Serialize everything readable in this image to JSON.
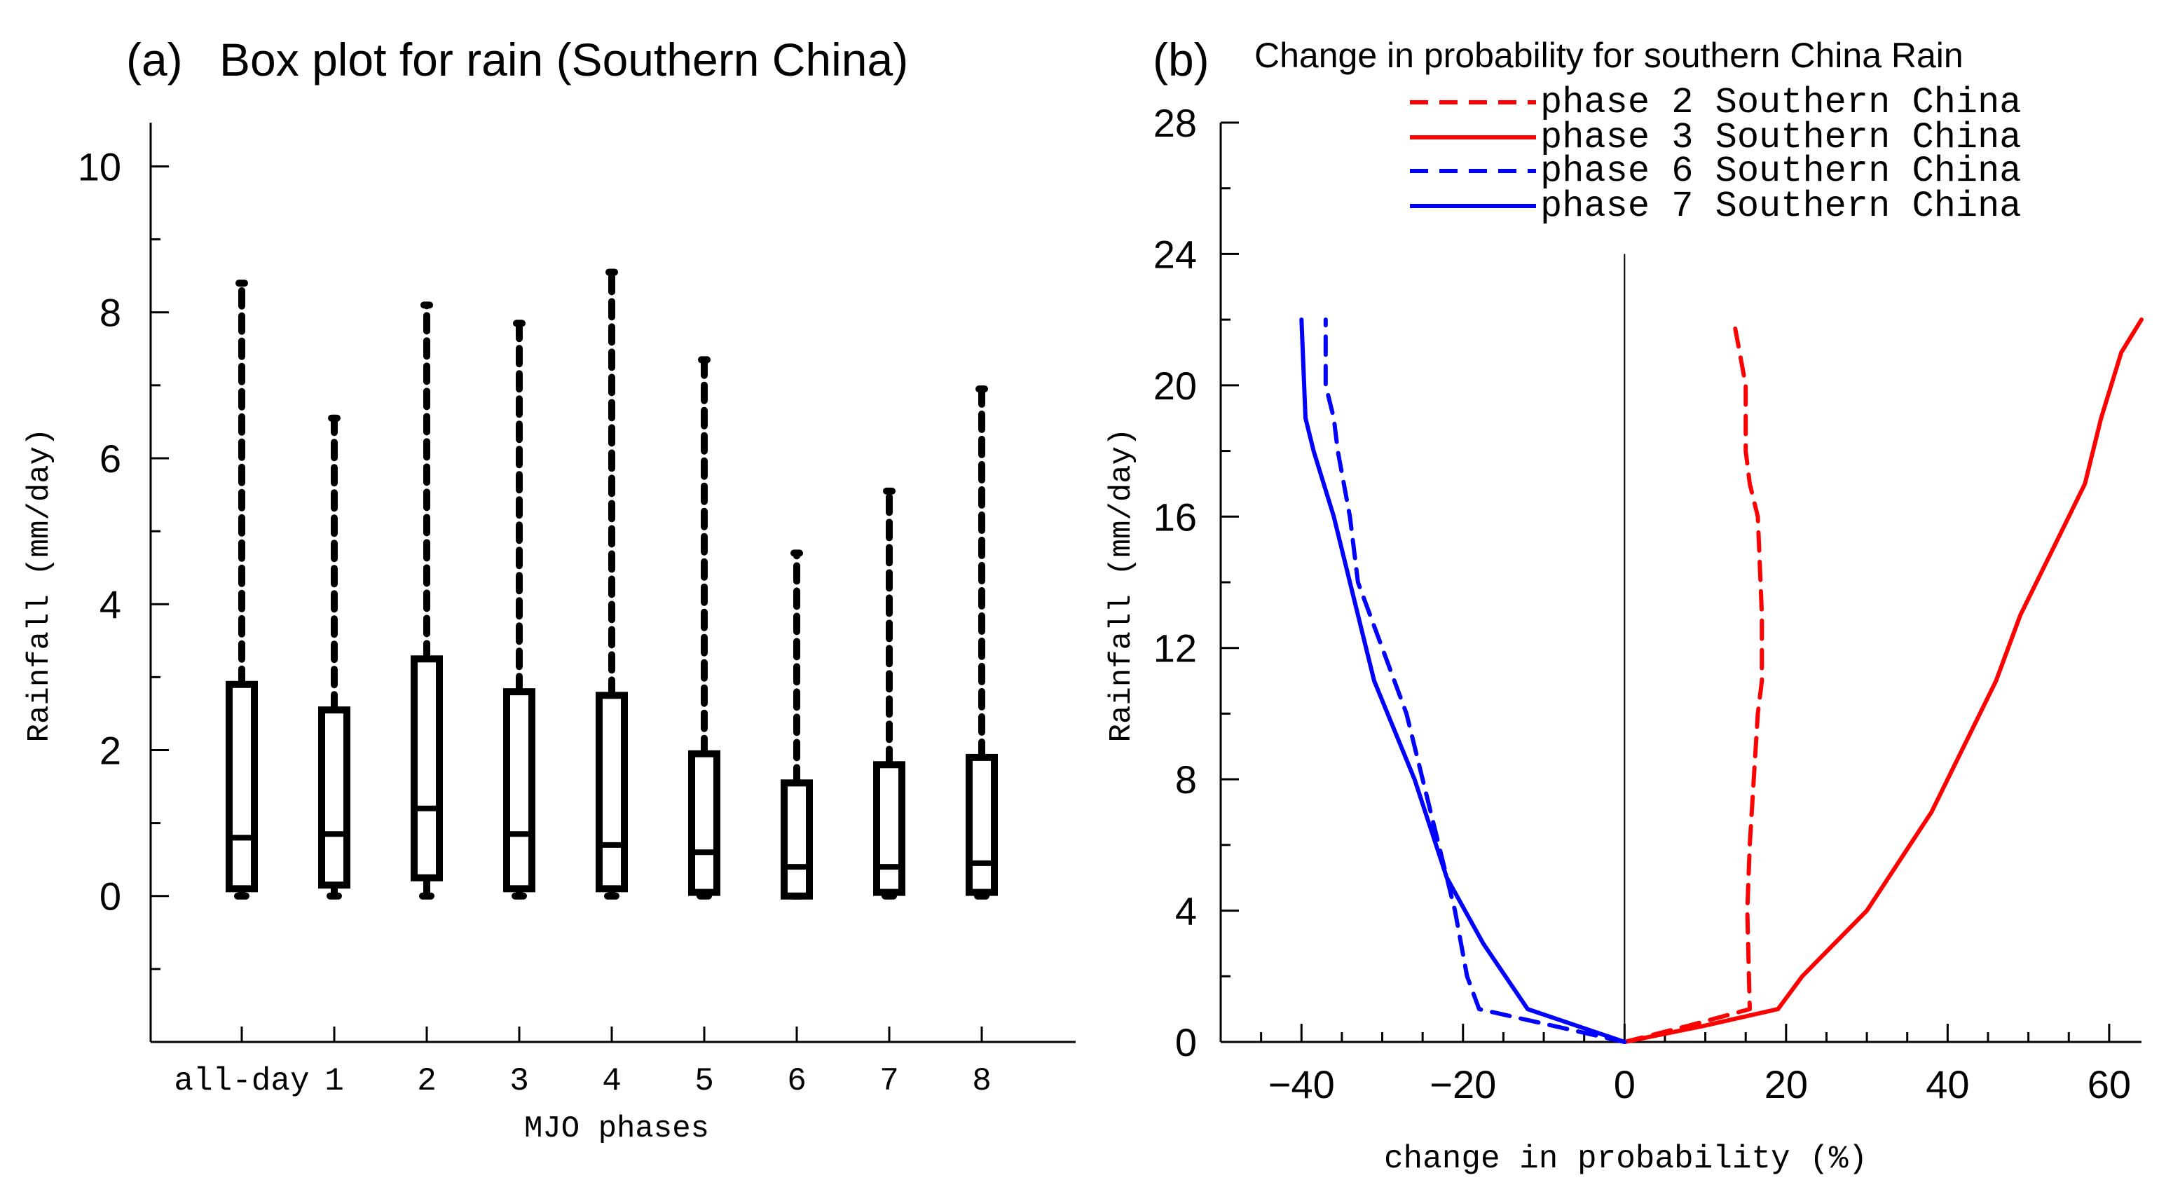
{
  "chart_data": [
    {
      "type": "box",
      "panel_label": "(a)",
      "title": "Box plot for rain (Southern China)",
      "xlabel": "MJO phases",
      "ylabel": "Rainfall (mm/day)",
      "ylim": [
        -2,
        10.6
      ],
      "yticks": [
        0,
        2,
        4,
        6,
        8,
        10
      ],
      "ytick_labels": [
        "0",
        "2",
        "4",
        "6",
        "8",
        "10"
      ],
      "categories": [
        "all-day",
        "1",
        "2",
        "3",
        "4",
        "5",
        "6",
        "7",
        "8"
      ],
      "boxes": [
        {
          "category": "all-day",
          "min": 0.0,
          "q1": 0.1,
          "median": 0.8,
          "q3": 2.9,
          "max": 8.4
        },
        {
          "category": "1",
          "min": 0.0,
          "q1": 0.15,
          "median": 0.85,
          "q3": 2.55,
          "max": 6.55
        },
        {
          "category": "2",
          "min": 0.0,
          "q1": 0.25,
          "median": 1.2,
          "q3": 3.25,
          "max": 8.1
        },
        {
          "category": "3",
          "min": 0.0,
          "q1": 0.1,
          "median": 0.85,
          "q3": 2.8,
          "max": 7.85
        },
        {
          "category": "4",
          "min": 0.0,
          "q1": 0.1,
          "median": 0.7,
          "q3": 2.75,
          "max": 8.55
        },
        {
          "category": "5",
          "min": 0.0,
          "q1": 0.05,
          "median": 0.6,
          "q3": 1.95,
          "max": 7.35
        },
        {
          "category": "6",
          "min": 0.0,
          "q1": 0.0,
          "median": 0.4,
          "q3": 1.55,
          "max": 4.7
        },
        {
          "category": "7",
          "min": 0.0,
          "q1": 0.05,
          "median": 0.4,
          "q3": 1.8,
          "max": 5.55
        },
        {
          "category": "8",
          "min": 0.0,
          "q1": 0.05,
          "median": 0.45,
          "q3": 1.9,
          "max": 6.95
        }
      ]
    },
    {
      "type": "line",
      "panel_label": "(b)",
      "title": "Change in probability for southern China Rain",
      "xlabel": "change in probability (%)",
      "ylabel": "Rainfall (mm/day)",
      "xlim": [
        -50,
        64
      ],
      "ylim": [
        0,
        28
      ],
      "xticks": [
        -40,
        -20,
        0,
        20,
        40,
        60
      ],
      "xtick_labels": [
        "−40",
        "−20",
        "0",
        "20",
        "40",
        "60"
      ],
      "yticks": [
        0,
        4,
        8,
        12,
        16,
        20,
        24,
        28
      ],
      "ytick_labels": [
        "0",
        "4",
        "8",
        "12",
        "16",
        "20",
        "24",
        "28"
      ],
      "series": [
        {
          "name": "phase 2 Southern China",
          "color": "#ff0000",
          "dash": "dashed",
          "x": [
            0,
            8,
            15.5,
            15.2,
            15.5,
            16,
            16.5,
            17,
            17,
            16.5,
            15.5,
            15,
            15,
            13.5
          ],
          "y": [
            0,
            0.5,
            1,
            4,
            6,
            8,
            10,
            11,
            13,
            16,
            17,
            18,
            20,
            22
          ]
        },
        {
          "name": "phase 3 Southern China",
          "color": "#ff0000",
          "dash": "solid",
          "x": [
            0,
            10,
            19,
            22,
            26,
            30,
            34,
            38,
            42,
            46,
            49,
            52,
            55,
            57,
            59,
            61.5,
            64
          ],
          "y": [
            0,
            0.5,
            1,
            2,
            3,
            4,
            5.5,
            7,
            9,
            11,
            13,
            14.5,
            16,
            17,
            19,
            21,
            22
          ]
        },
        {
          "name": "phase 6 Southern China",
          "color": "#0000ff",
          "dash": "dashed",
          "x": [
            0,
            -18,
            -19.5,
            -21,
            -24,
            -27,
            -30,
            -33,
            -34,
            -35.5,
            -36,
            -37,
            -37
          ],
          "y": [
            0,
            1,
            2,
            4,
            7,
            10,
            12,
            14,
            16,
            18,
            19,
            20,
            22
          ]
        },
        {
          "name": "phase 7 Southern China",
          "color": "#0000ff",
          "dash": "solid",
          "x": [
            0,
            -12,
            -17.5,
            -22,
            -26,
            -31,
            -34,
            -36,
            -38.5,
            -39.5,
            -40
          ],
          "y": [
            0,
            1,
            3,
            5,
            8,
            11,
            14,
            16,
            18,
            19,
            22
          ]
        }
      ],
      "zero_line_x": 0,
      "legend_position": "top-right"
    }
  ]
}
